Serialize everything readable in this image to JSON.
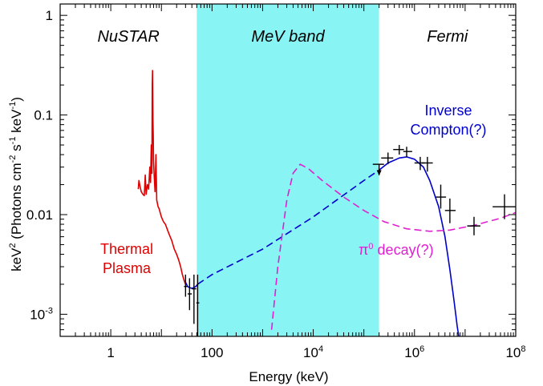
{
  "chart_data": {
    "type": "line",
    "xlabel": "Energy (keV)",
    "ylabel_main": "keV",
    "ylabel_sup1": "2",
    "ylabel_mid": " (Photons cm",
    "ylabel_sup2": "-2",
    "ylabel_mid2": " s",
    "ylabel_sup3": "-1",
    "ylabel_mid3": " keV",
    "ylabel_sup4": "-1",
    "ylabel_end": ")",
    "x_scale": "log",
    "y_scale": "log",
    "xlim": [
      0.1,
      100000000
    ],
    "ylim": [
      0.0006,
      1.3
    ],
    "x_ticks": [
      {
        "value": 1,
        "label": "1"
      },
      {
        "value": 100,
        "label": "100"
      },
      {
        "value": 10000,
        "base": "10",
        "exp": "4"
      },
      {
        "value": 1000000,
        "base": "10",
        "exp": "6"
      },
      {
        "value": 100000000,
        "base": "10",
        "exp": "8"
      }
    ],
    "y_ticks": [
      {
        "value": 0.001,
        "base": "10",
        "exp": "-3"
      },
      {
        "value": 0.01,
        "label": "0.01"
      },
      {
        "value": 0.1,
        "label": "0.1"
      },
      {
        "value": 1,
        "label": "1"
      }
    ],
    "bands": [
      {
        "label": "NuSTAR",
        "x": [
          0.1,
          50
        ],
        "color": "#ffffff"
      },
      {
        "label": "MeV band",
        "x": [
          50,
          200000
        ],
        "color": "#88f4f4"
      },
      {
        "label": "Fermi",
        "x": [
          200000,
          100000000
        ],
        "color": "#ffffff"
      }
    ],
    "annotations": {
      "thermal_line1": "Thermal",
      "thermal_line2": "Plasma",
      "ic_line1": "Inverse",
      "ic_line2": "Compton(?)",
      "pi0_pre": "π",
      "pi0_sup": "0",
      "pi0_post": " decay(?)"
    },
    "series": [
      {
        "name": "Thermal Plasma",
        "style": "solid",
        "color": "#e00000",
        "points": [
          [
            3.5,
            0.018
          ],
          [
            3.6,
            0.022
          ],
          [
            3.8,
            0.019
          ],
          [
            4,
            0.017
          ],
          [
            4.3,
            0.016
          ],
          [
            4.6,
            0.0155
          ],
          [
            4.8,
            0.025
          ],
          [
            5,
            0.016
          ],
          [
            5.3,
            0.02
          ],
          [
            5.6,
            0.018
          ],
          [
            5.9,
            0.03
          ],
          [
            6.1,
            0.021
          ],
          [
            6.3,
            0.05
          ],
          [
            6.5,
            0.026
          ],
          [
            6.6,
            0.2
          ],
          [
            6.7,
            0.28
          ],
          [
            6.8,
            0.09
          ],
          [
            6.9,
            0.06
          ],
          [
            7,
            0.035
          ],
          [
            7.2,
            0.025
          ],
          [
            7.5,
            0.017
          ],
          [
            7.8,
            0.04
          ],
          [
            8.1,
            0.014
          ],
          [
            8.6,
            0.012
          ],
          [
            9,
            0.0115
          ],
          [
            10,
            0.0095
          ],
          [
            11,
            0.0085
          ],
          [
            12,
            0.008
          ],
          [
            14,
            0.0065
          ],
          [
            16,
            0.0055
          ],
          [
            18,
            0.0045
          ],
          [
            20,
            0.004
          ],
          [
            22,
            0.0035
          ],
          [
            24,
            0.003
          ],
          [
            26,
            0.0025
          ],
          [
            28,
            0.0022
          ],
          [
            30,
            0.002
          ]
        ]
      },
      {
        "name": "NuSTAR model",
        "style": "solid",
        "color": "#0000cc",
        "points": [
          [
            30,
            0.0021
          ],
          [
            33,
            0.0019
          ],
          [
            36,
            0.00185
          ],
          [
            40,
            0.00182
          ],
          [
            44,
            0.00185
          ],
          [
            48,
            0.0019
          ],
          [
            52,
            0.002
          ]
        ]
      },
      {
        "name": "Inverse Compton(?)",
        "style": "dashed",
        "color": "#0000cc",
        "points": [
          [
            52,
            0.002
          ],
          [
            100,
            0.0025
          ],
          [
            1000,
            0.0045
          ],
          [
            10000,
            0.0095
          ],
          [
            100000,
            0.022
          ],
          [
            200000,
            0.028
          ]
        ]
      },
      {
        "name": "Inverse Compton(?)",
        "style": "solid",
        "color": "#0000cc",
        "points": [
          [
            200000,
            0.028
          ],
          [
            300000,
            0.033
          ],
          [
            500000,
            0.037
          ],
          [
            700000,
            0.038
          ],
          [
            1000000,
            0.036
          ],
          [
            1500000,
            0.03
          ],
          [
            2000000,
            0.022
          ],
          [
            3000000,
            0.012
          ],
          [
            4000000,
            0.006
          ],
          [
            5000000,
            0.0028
          ],
          [
            6000000,
            0.0014
          ],
          [
            7000000,
            0.00075
          ],
          [
            7500000,
            0.0006
          ]
        ]
      },
      {
        "name": "π0 decay(?)",
        "style": "dashed",
        "color": "#e020d0",
        "points": [
          [
            1500,
            0.0007
          ],
          [
            2000,
            0.003
          ],
          [
            3000,
            0.014
          ],
          [
            4000,
            0.026
          ],
          [
            5500,
            0.032
          ],
          [
            8000,
            0.029
          ],
          [
            15000,
            0.022
          ],
          [
            40000,
            0.015
          ],
          [
            100000,
            0.011
          ],
          [
            250000,
            0.0085
          ],
          [
            700000,
            0.0072
          ],
          [
            2000000,
            0.0068
          ],
          [
            5000000,
            0.007
          ],
          [
            15000000,
            0.0078
          ],
          [
            50000000,
            0.0092
          ],
          [
            100000000,
            0.0105
          ]
        ]
      }
    ],
    "data_points": [
      {
        "x": 200000,
        "xerr": [
          150000,
          250000
        ],
        "y": 0.032,
        "yerr": [
          0.025,
          0.032
        ],
        "upper_limit": true
      },
      {
        "x": 300000,
        "xerr": [
          220000,
          380000
        ],
        "y": 0.037,
        "yerr": [
          0.032,
          0.042
        ]
      },
      {
        "x": 500000,
        "xerr": [
          380000,
          620000
        ],
        "y": 0.045,
        "yerr": [
          0.04,
          0.05
        ]
      },
      {
        "x": 700000,
        "xerr": [
          600000,
          900000
        ],
        "y": 0.043,
        "yerr": [
          0.038,
          0.048
        ]
      },
      {
        "x": 1300000,
        "xerr": [
          1000000,
          1600000
        ],
        "y": 0.033,
        "yerr": [
          0.028,
          0.038
        ]
      },
      {
        "x": 1800000,
        "xerr": [
          1400000,
          2300000
        ],
        "y": 0.033,
        "yerr": [
          0.027,
          0.038
        ]
      },
      {
        "x": 3300000,
        "xerr": [
          2600000,
          4200000
        ],
        "y": 0.015,
        "yerr": [
          0.0115,
          0.02
        ]
      },
      {
        "x": 5000000,
        "xerr": [
          4000000,
          6500000
        ],
        "y": 0.011,
        "yerr": [
          0.0082,
          0.0145
        ]
      },
      {
        "x": 15000000,
        "xerr": [
          11000000,
          20000000
        ],
        "y": 0.0077,
        "yerr": [
          0.0062,
          0.0095
        ]
      },
      {
        "x": 60000000,
        "xerr": [
          35000000,
          100000000
        ],
        "y": 0.012,
        "yerr": [
          0.009,
          0.016
        ]
      },
      {
        "x": 30,
        "xerr": [
          28,
          33
        ],
        "y": 0.0019,
        "yerr": [
          0.0015,
          0.0025
        ]
      },
      {
        "x": 36,
        "xerr": [
          33,
          40
        ],
        "y": 0.0016,
        "yerr": [
          0.0011,
          0.0023
        ]
      },
      {
        "x": 44,
        "xerr": [
          40,
          49
        ],
        "y": 0.0018,
        "yerr": [
          0.0008,
          0.0025
        ]
      },
      {
        "x": 52,
        "xerr": [
          49,
          56
        ],
        "y": 0.0013,
        "yerr": [
          0.0006,
          0.0025
        ]
      }
    ]
  }
}
